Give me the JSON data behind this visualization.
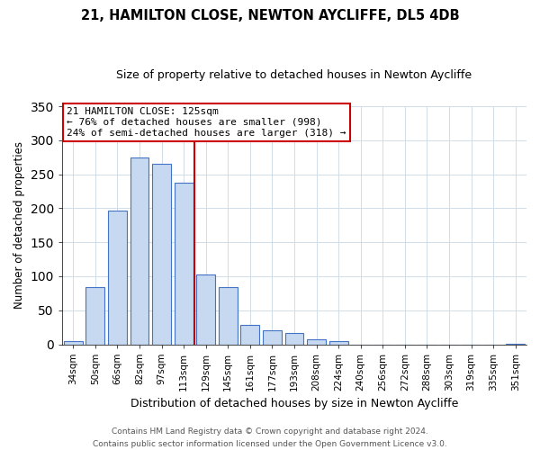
{
  "title": "21, HAMILTON CLOSE, NEWTON AYCLIFFE, DL5 4DB",
  "subtitle": "Size of property relative to detached houses in Newton Aycliffe",
  "xlabel": "Distribution of detached houses by size in Newton Aycliffe",
  "ylabel": "Number of detached properties",
  "footer_line1": "Contains HM Land Registry data © Crown copyright and database right 2024.",
  "footer_line2": "Contains public sector information licensed under the Open Government Licence v3.0.",
  "bar_labels": [
    "34sqm",
    "50sqm",
    "66sqm",
    "82sqm",
    "97sqm",
    "113sqm",
    "129sqm",
    "145sqm",
    "161sqm",
    "177sqm",
    "193sqm",
    "208sqm",
    "224sqm",
    "240sqm",
    "256sqm",
    "272sqm",
    "288sqm",
    "303sqm",
    "319sqm",
    "335sqm",
    "351sqm"
  ],
  "bar_values": [
    5,
    84,
    196,
    274,
    265,
    237,
    103,
    84,
    28,
    20,
    16,
    7,
    5,
    0,
    0,
    0,
    0,
    0,
    0,
    0,
    1
  ],
  "bar_color": "#c6d9f0",
  "bar_edge_color": "#4472c4",
  "ylim": [
    0,
    350
  ],
  "yticks": [
    0,
    50,
    100,
    150,
    200,
    250,
    300,
    350
  ],
  "annotation_title": "21 HAMILTON CLOSE: 125sqm",
  "annotation_line1": "← 76% of detached houses are smaller (998)",
  "annotation_line2": "24% of semi-detached houses are larger (318) →",
  "vline_x": 6.0,
  "vline_color": "#cc0000",
  "bar_edgewidth": 0.8,
  "grid_color": "#d0dde8",
  "title_fontsize": 10.5,
  "subtitle_fontsize": 9,
  "ylabel_fontsize": 8.5,
  "xlabel_fontsize": 9,
  "tick_fontsize": 7.5,
  "ann_fontsize": 8,
  "footer_fontsize": 6.5
}
